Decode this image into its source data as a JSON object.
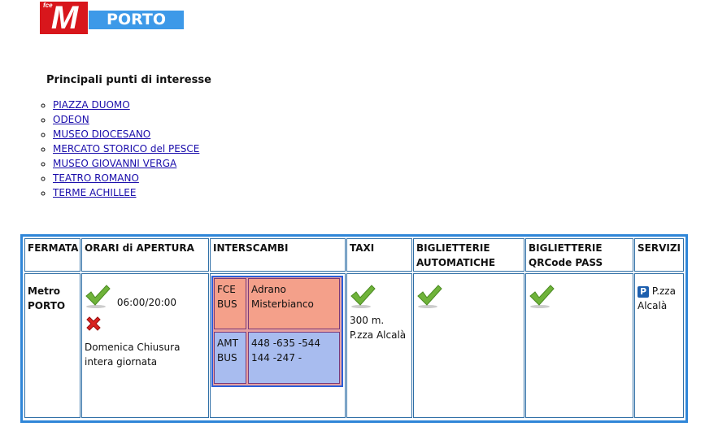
{
  "header": {
    "logo_text": "M",
    "logo_small": "fce",
    "station_name": "PORTO"
  },
  "poi": {
    "title": "Principali punti di interesse",
    "items": [
      "PIAZZA DUOMO",
      "ODEON",
      "MUSEO DIOCESANO",
      "MERCATO STORICO del PESCE",
      "MUSEO GIOVANNI VERGA",
      "TEATRO ROMANO",
      "TERME ACHILLEE"
    ]
  },
  "table": {
    "headers": [
      "FERMATA",
      "ORARI di APERTURA",
      "INTERSCAMBI",
      "TAXI",
      "BIGLIETTERIE AUTOMATICHE",
      "BIGLIETTERIE QRCode PASS",
      "SERVIZI"
    ],
    "fermata": "Metro PORTO",
    "orari": {
      "hours": "06:00/20:00",
      "closure": "Domenica Chiusura intera giornata"
    },
    "interscambi": [
      {
        "operator": "FCE BUS",
        "lines": "Adrano Misterbianco",
        "color": "#f4a08a"
      },
      {
        "operator": "AMT BUS",
        "lines": "448 -635 -544 144 -247 -",
        "color": "#a8bcef"
      }
    ],
    "taxi": {
      "distance": "300 m.",
      "location": "P.zza Alcalà"
    },
    "servizi": {
      "icon": "P",
      "text": "P.zza Alcalà"
    }
  }
}
